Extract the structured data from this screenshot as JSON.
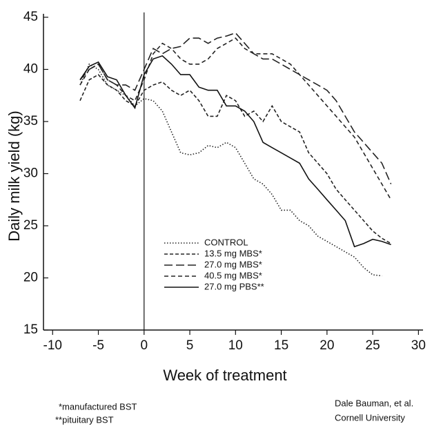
{
  "chart_data": {
    "type": "line",
    "x_label": "Week of treatment",
    "y_label": "Daily milk yield (kg)",
    "x": [
      -7,
      -6,
      -5,
      -4,
      -3,
      -2,
      -1,
      0,
      1,
      2,
      3,
      4,
      5,
      6,
      7,
      8,
      9,
      10,
      11,
      12,
      13,
      14,
      15,
      16,
      17,
      18,
      19,
      20,
      21,
      22,
      23,
      24,
      25,
      26,
      27
    ],
    "series": [
      {
        "name": "CONTROL",
        "color": "#222",
        "dash": "1.5,2.5",
        "values": [
          38.5,
          40.5,
          40,
          38.5,
          38,
          37.5,
          36.5,
          37.2,
          37,
          36,
          34,
          32,
          31.8,
          32,
          32.7,
          32.5,
          33,
          32.5,
          31,
          29.5,
          29,
          28,
          26.5,
          26.5,
          25.5,
          25,
          24,
          23.5,
          23,
          22.5,
          22,
          21,
          20.3,
          20.2,
          null
        ]
      },
      {
        "name": "13.5 mg MBS*",
        "color": "#222",
        "dash": "5,3",
        "values": [
          37,
          39,
          39.5,
          38.5,
          38,
          37,
          36.5,
          38,
          38.5,
          38.8,
          38,
          37.5,
          38,
          37,
          35.5,
          35.5,
          37.5,
          37,
          35.5,
          36,
          35,
          36.5,
          35,
          34.5,
          34,
          32,
          31,
          30,
          28.5,
          27.5,
          26.5,
          25.5,
          24.5,
          23.8,
          23.3
        ]
      },
      {
        "name": "27.0 mg MBS*",
        "color": "#222",
        "dash": "12,5",
        "values": [
          39,
          40,
          40.5,
          39,
          38.5,
          38.5,
          38,
          40,
          42,
          41.5,
          42,
          42.2,
          43,
          43,
          42.5,
          43,
          43.2,
          43.5,
          42.5,
          41.5,
          41,
          41,
          40.5,
          40,
          39.5,
          39,
          38.5,
          38,
          37,
          35.5,
          34,
          33,
          32,
          31,
          29
        ]
      },
      {
        "name": "40.5 mg MBS*",
        "color": "#222",
        "dash": "6,4",
        "values": [
          38.5,
          40,
          40.5,
          39,
          38.5,
          37.5,
          37,
          39,
          41.5,
          42.5,
          42,
          41,
          40.5,
          40.5,
          41,
          42,
          42.5,
          43,
          42,
          41.5,
          41.5,
          41.5,
          41,
          40.5,
          39.5,
          38.5,
          37.5,
          36.5,
          35.5,
          34.5,
          33.5,
          32,
          30.5,
          29,
          27.5
        ]
      },
      {
        "name": "27.0 mg PBS**",
        "color": "#111",
        "dash": "none",
        "values": [
          39,
          40.3,
          40.7,
          39.3,
          39,
          37.5,
          36.3,
          39.5,
          41,
          41.3,
          40.5,
          39.5,
          39.5,
          38.3,
          38,
          38,
          36.5,
          36.5,
          36,
          35,
          33,
          32.5,
          32,
          31.5,
          31,
          29.5,
          28.5,
          27.5,
          26.5,
          25.5,
          23,
          23.3,
          23.7,
          23.5,
          23.2
        ]
      }
    ],
    "xlim": [
      -11,
      30.5
    ],
    "ylim": [
      15,
      45
    ],
    "xticks": [
      -10,
      -5,
      0,
      5,
      10,
      15,
      20,
      25,
      30
    ],
    "yticks": [
      15,
      20,
      25,
      30,
      35,
      40,
      45
    ],
    "reference_line_x": 0,
    "grid": false
  },
  "notes": [
    "*manufactured BST",
    "**pituitary BST",
    "Dale Bauman, et al.",
    "Cornell University"
  ]
}
